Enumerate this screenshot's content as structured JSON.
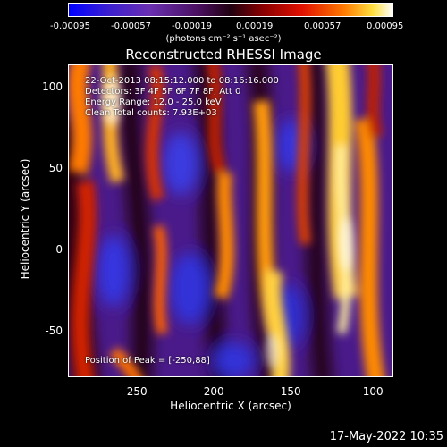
{
  "colorbar": {
    "ticks": [
      "-0.00095",
      "-0.00057",
      "-0.00019",
      "0.00019",
      "0.00057",
      "0.00095"
    ],
    "units": "(photons cm⁻² s⁻¹ asec⁻²)"
  },
  "title": "Reconstructed RHESSI Image",
  "overlay": {
    "line1": "22-Oct-2013 08:15:12.000 to 08:16:16.000",
    "line2": "Detectors: 3F 4F 5F 6F 7F 8F, Att 0",
    "line3": "Energy Range: 12.0 - 25.0 keV",
    "line4": "Clean     Total counts: 7.93E+03",
    "peak": "Position of Peak = [-250,88]"
  },
  "axes": {
    "xlabel": "Heliocentric X (arcsec)",
    "ylabel": "Heliocentric Y (arcsec)",
    "xticks": [
      "-250",
      "-200",
      "-150",
      "-100"
    ],
    "yticks": [
      "100",
      "50",
      "0",
      "-50"
    ]
  },
  "timestamp": "17-May-2022 10:35",
  "colors": {
    "background": "#000000",
    "foreground": "#ffffff",
    "hot": "#ff8a00",
    "cool": "#3b2fd0"
  }
}
